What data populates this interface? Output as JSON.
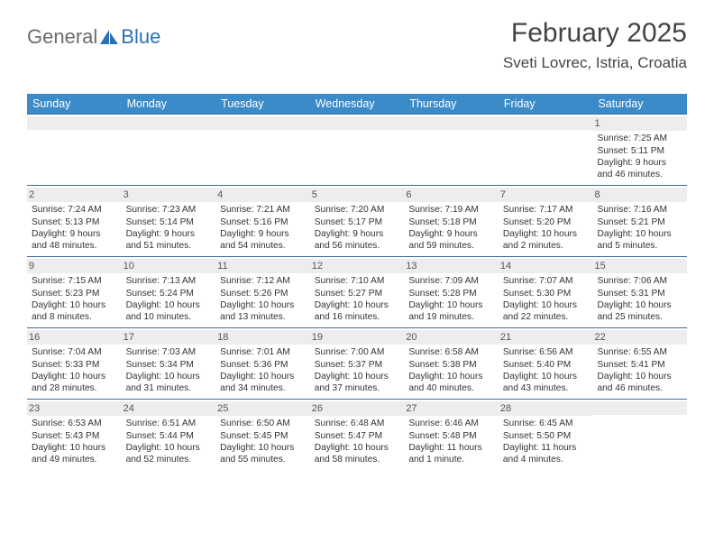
{
  "logo": {
    "part1": "General",
    "part2": "Blue"
  },
  "title": "February 2025",
  "location": "Sveti Lovrec, Istria, Croatia",
  "colors": {
    "header_bg": "#3b8bc8",
    "header_text": "#ffffff",
    "row_border": "#3b6a95",
    "daynum_bg": "#ededed",
    "logo_gray": "#6b6b6b",
    "logo_blue": "#2a72b5"
  },
  "weekdays": [
    "Sunday",
    "Monday",
    "Tuesday",
    "Wednesday",
    "Thursday",
    "Friday",
    "Saturday"
  ],
  "weeks": [
    [
      {
        "n": "",
        "sunrise": "",
        "sunset": "",
        "daylight": ""
      },
      {
        "n": "",
        "sunrise": "",
        "sunset": "",
        "daylight": ""
      },
      {
        "n": "",
        "sunrise": "",
        "sunset": "",
        "daylight": ""
      },
      {
        "n": "",
        "sunrise": "",
        "sunset": "",
        "daylight": ""
      },
      {
        "n": "",
        "sunrise": "",
        "sunset": "",
        "daylight": ""
      },
      {
        "n": "",
        "sunrise": "",
        "sunset": "",
        "daylight": ""
      },
      {
        "n": "1",
        "sunrise": "Sunrise: 7:25 AM",
        "sunset": "Sunset: 5:11 PM",
        "daylight": "Daylight: 9 hours and 46 minutes."
      }
    ],
    [
      {
        "n": "2",
        "sunrise": "Sunrise: 7:24 AM",
        "sunset": "Sunset: 5:13 PM",
        "daylight": "Daylight: 9 hours and 48 minutes."
      },
      {
        "n": "3",
        "sunrise": "Sunrise: 7:23 AM",
        "sunset": "Sunset: 5:14 PM",
        "daylight": "Daylight: 9 hours and 51 minutes."
      },
      {
        "n": "4",
        "sunrise": "Sunrise: 7:21 AM",
        "sunset": "Sunset: 5:16 PM",
        "daylight": "Daylight: 9 hours and 54 minutes."
      },
      {
        "n": "5",
        "sunrise": "Sunrise: 7:20 AM",
        "sunset": "Sunset: 5:17 PM",
        "daylight": "Daylight: 9 hours and 56 minutes."
      },
      {
        "n": "6",
        "sunrise": "Sunrise: 7:19 AM",
        "sunset": "Sunset: 5:18 PM",
        "daylight": "Daylight: 9 hours and 59 minutes."
      },
      {
        "n": "7",
        "sunrise": "Sunrise: 7:17 AM",
        "sunset": "Sunset: 5:20 PM",
        "daylight": "Daylight: 10 hours and 2 minutes."
      },
      {
        "n": "8",
        "sunrise": "Sunrise: 7:16 AM",
        "sunset": "Sunset: 5:21 PM",
        "daylight": "Daylight: 10 hours and 5 minutes."
      }
    ],
    [
      {
        "n": "9",
        "sunrise": "Sunrise: 7:15 AM",
        "sunset": "Sunset: 5:23 PM",
        "daylight": "Daylight: 10 hours and 8 minutes."
      },
      {
        "n": "10",
        "sunrise": "Sunrise: 7:13 AM",
        "sunset": "Sunset: 5:24 PM",
        "daylight": "Daylight: 10 hours and 10 minutes."
      },
      {
        "n": "11",
        "sunrise": "Sunrise: 7:12 AM",
        "sunset": "Sunset: 5:26 PM",
        "daylight": "Daylight: 10 hours and 13 minutes."
      },
      {
        "n": "12",
        "sunrise": "Sunrise: 7:10 AM",
        "sunset": "Sunset: 5:27 PM",
        "daylight": "Daylight: 10 hours and 16 minutes."
      },
      {
        "n": "13",
        "sunrise": "Sunrise: 7:09 AM",
        "sunset": "Sunset: 5:28 PM",
        "daylight": "Daylight: 10 hours and 19 minutes."
      },
      {
        "n": "14",
        "sunrise": "Sunrise: 7:07 AM",
        "sunset": "Sunset: 5:30 PM",
        "daylight": "Daylight: 10 hours and 22 minutes."
      },
      {
        "n": "15",
        "sunrise": "Sunrise: 7:06 AM",
        "sunset": "Sunset: 5:31 PM",
        "daylight": "Daylight: 10 hours and 25 minutes."
      }
    ],
    [
      {
        "n": "16",
        "sunrise": "Sunrise: 7:04 AM",
        "sunset": "Sunset: 5:33 PM",
        "daylight": "Daylight: 10 hours and 28 minutes."
      },
      {
        "n": "17",
        "sunrise": "Sunrise: 7:03 AM",
        "sunset": "Sunset: 5:34 PM",
        "daylight": "Daylight: 10 hours and 31 minutes."
      },
      {
        "n": "18",
        "sunrise": "Sunrise: 7:01 AM",
        "sunset": "Sunset: 5:36 PM",
        "daylight": "Daylight: 10 hours and 34 minutes."
      },
      {
        "n": "19",
        "sunrise": "Sunrise: 7:00 AM",
        "sunset": "Sunset: 5:37 PM",
        "daylight": "Daylight: 10 hours and 37 minutes."
      },
      {
        "n": "20",
        "sunrise": "Sunrise: 6:58 AM",
        "sunset": "Sunset: 5:38 PM",
        "daylight": "Daylight: 10 hours and 40 minutes."
      },
      {
        "n": "21",
        "sunrise": "Sunrise: 6:56 AM",
        "sunset": "Sunset: 5:40 PM",
        "daylight": "Daylight: 10 hours and 43 minutes."
      },
      {
        "n": "22",
        "sunrise": "Sunrise: 6:55 AM",
        "sunset": "Sunset: 5:41 PM",
        "daylight": "Daylight: 10 hours and 46 minutes."
      }
    ],
    [
      {
        "n": "23",
        "sunrise": "Sunrise: 6:53 AM",
        "sunset": "Sunset: 5:43 PM",
        "daylight": "Daylight: 10 hours and 49 minutes."
      },
      {
        "n": "24",
        "sunrise": "Sunrise: 6:51 AM",
        "sunset": "Sunset: 5:44 PM",
        "daylight": "Daylight: 10 hours and 52 minutes."
      },
      {
        "n": "25",
        "sunrise": "Sunrise: 6:50 AM",
        "sunset": "Sunset: 5:45 PM",
        "daylight": "Daylight: 10 hours and 55 minutes."
      },
      {
        "n": "26",
        "sunrise": "Sunrise: 6:48 AM",
        "sunset": "Sunset: 5:47 PM",
        "daylight": "Daylight: 10 hours and 58 minutes."
      },
      {
        "n": "27",
        "sunrise": "Sunrise: 6:46 AM",
        "sunset": "Sunset: 5:48 PM",
        "daylight": "Daylight: 11 hours and 1 minute."
      },
      {
        "n": "28",
        "sunrise": "Sunrise: 6:45 AM",
        "sunset": "Sunset: 5:50 PM",
        "daylight": "Daylight: 11 hours and 4 minutes."
      },
      {
        "n": "",
        "sunrise": "",
        "sunset": "",
        "daylight": ""
      }
    ]
  ]
}
